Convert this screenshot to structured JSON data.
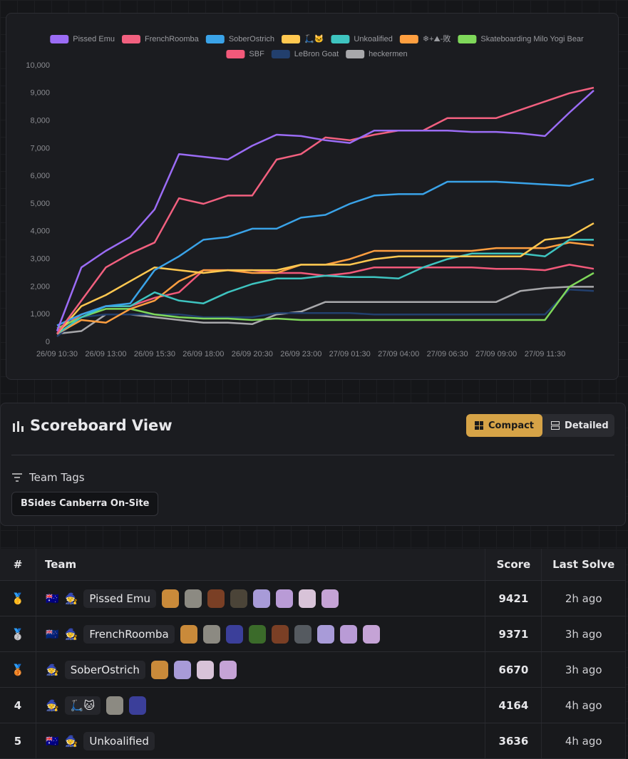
{
  "chart_data": {
    "type": "line",
    "categories": [
      "26/09 10:30",
      null,
      "26/09 13:00",
      null,
      "26/09 15:30",
      null,
      "26/09 18:00",
      null,
      "26/09 20:30",
      null,
      "26/09 23:00",
      null,
      "27/09 01:30",
      null,
      "27/09 04:00",
      null,
      "27/09 06:30",
      null,
      "27/09 09:00",
      null,
      "27/09 11:30",
      null,
      null
    ],
    "ylim": [
      0,
      10000
    ],
    "yticks": [
      0,
      {
        "value": 1000,
        "label": "1,000"
      },
      {
        "value": 2000,
        "label": "2,000"
      },
      {
        "value": 3000,
        "label": "3,000"
      },
      {
        "value": 4000,
        "label": "4,000"
      },
      {
        "value": 5000,
        "label": "5,000"
      },
      {
        "value": 6000,
        "label": "6,000"
      },
      {
        "value": 7000,
        "label": "7,000"
      },
      {
        "value": 8000,
        "label": "8,000"
      },
      {
        "value": 9000,
        "label": "9,000"
      },
      {
        "value": 10000,
        "label": "10,000"
      }
    ],
    "grid": false,
    "legend": "top",
    "series": [
      {
        "name": "Pissed Emu",
        "color": "#9b6cf5",
        "values": [
          400,
          2700,
          3300,
          3800,
          4800,
          6800,
          6700,
          6600,
          7100,
          7500,
          7450,
          7300,
          7200,
          7650,
          7650,
          7650,
          7650,
          7600,
          7600,
          7550,
          7450,
          8300,
          9100
        ]
      },
      {
        "name": "FrenchRoomba",
        "color": "#f2607f",
        "values": [
          300,
          1500,
          2700,
          3200,
          3600,
          5200,
          5000,
          5300,
          5300,
          6600,
          6800,
          7400,
          7300,
          7500,
          7650,
          7650,
          8100,
          8100,
          8100,
          8400,
          8700,
          9000,
          9200
        ]
      },
      {
        "name": "SoberOstrich",
        "color": "#3aa3e8",
        "values": [
          600,
          1000,
          1300,
          1400,
          2600,
          3100,
          3700,
          3800,
          4100,
          4100,
          4500,
          4600,
          5000,
          5300,
          5350,
          5350,
          5800,
          5800,
          5800,
          5750,
          5700,
          5650,
          5900
        ]
      },
      {
        "name": "🛴🐱",
        "color": "#ffc850",
        "values": [
          300,
          1300,
          1700,
          2200,
          2700,
          2600,
          2500,
          2600,
          2600,
          2600,
          2800,
          2800,
          2800,
          3000,
          3100,
          3100,
          3100,
          3100,
          3100,
          3100,
          3700,
          3800,
          4300
        ]
      },
      {
        "name": "Unkoalified",
        "color": "#3ec4c0",
        "values": [
          300,
          900,
          1300,
          1300,
          1800,
          1500,
          1400,
          1800,
          2100,
          2300,
          2300,
          2400,
          2350,
          2350,
          2300,
          2700,
          3000,
          3200,
          3200,
          3200,
          3100,
          3700,
          3700
        ]
      },
      {
        "name": "❄+⛰-敗",
        "color": "#ff9f40",
        "values": [
          300,
          800,
          700,
          1200,
          1500,
          2200,
          2600,
          2600,
          2500,
          2500,
          2800,
          2800,
          3000,
          3300,
          3300,
          3300,
          3300,
          3300,
          3400,
          3400,
          3400,
          3600,
          3500
        ]
      },
      {
        "name": "Skateboarding Milo Yogi Bear",
        "color": "#7fd85a",
        "values": [
          500,
          900,
          1200,
          1200,
          1000,
          900,
          850,
          850,
          800,
          850,
          800,
          800,
          800,
          800,
          800,
          800,
          800,
          800,
          800,
          800,
          800,
          2000,
          2500
        ]
      },
      {
        "name": "SBF",
        "color": "#f2597a",
        "values": [
          400,
          1000,
          1300,
          1300,
          1600,
          1800,
          2600,
          2600,
          2600,
          2500,
          2500,
          2400,
          2500,
          2700,
          2700,
          2700,
          2700,
          2700,
          2650,
          2650,
          2600,
          2800,
          2650
        ]
      },
      {
        "name": "LeBron Goat",
        "color": "#223f6d",
        "values": [
          200,
          900,
          1000,
          1000,
          1000,
          1000,
          900,
          900,
          900,
          1050,
          1050,
          1050,
          1050,
          1000,
          1000,
          1000,
          1000,
          1000,
          1000,
          1000,
          1000,
          1900,
          1850
        ]
      },
      {
        "name": "heckermen",
        "color": "#a8a8ab",
        "values": [
          300,
          400,
          1000,
          1000,
          900,
          800,
          700,
          700,
          650,
          1000,
          1100,
          1450,
          1450,
          1450,
          1450,
          1450,
          1450,
          1450,
          1450,
          1850,
          1950,
          2000,
          2000
        ]
      }
    ]
  },
  "scoreboard": {
    "title": "Scoreboard View",
    "buttons": [
      "Compact",
      "Detailed"
    ],
    "tags_label": "Team Tags",
    "tags": [
      "BSides Canberra On-Site"
    ]
  },
  "table": {
    "headers": [
      "#",
      "Team",
      "Score",
      "Last Solve"
    ],
    "rows": [
      {
        "rank": "🥇",
        "flag": "🇦🇺",
        "avatar": "🧙",
        "team": "Pissed Emu",
        "score": 9421,
        "last_solve": "2h ago"
      },
      {
        "rank": "🥈",
        "flag": "🇳🇿",
        "avatar": "🧙",
        "team": "FrenchRoomba",
        "score": 9371,
        "last_solve": "3h ago"
      },
      {
        "rank": "🥉",
        "avatar": "🧙",
        "team": "SoberOstrich",
        "score": 6670,
        "last_solve": "3h ago"
      },
      {
        "rank": "4",
        "avatar": "🧙",
        "team": "🛴🐱",
        "score": 4164,
        "last_solve": "4h ago"
      },
      {
        "rank": "5",
        "flag": "🇦🇺",
        "avatar": "🧙",
        "team": "Unkoalified",
        "score": 3636,
        "last_solve": "4h ago"
      }
    ]
  }
}
